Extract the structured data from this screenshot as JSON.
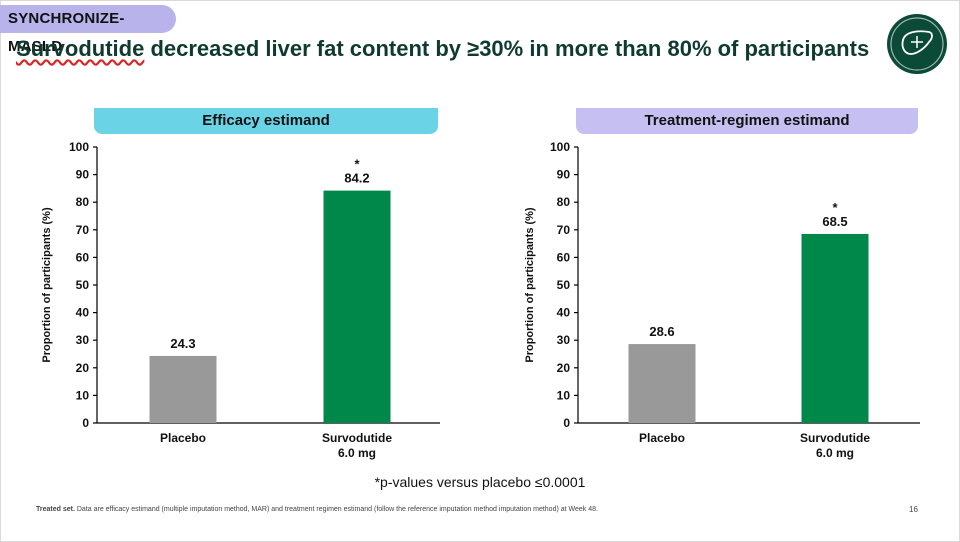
{
  "header": {
    "tag": "SYNCHRONIZE-MASLD",
    "title_highlight": "Survodutide",
    "title_rest": " decreased liver fat content by ≥30% in more than 80% of participants",
    "logo_icon": "liver-icon"
  },
  "colors": {
    "placebo": "#999999",
    "survodutide": "#00874a",
    "efficacy_pill": "#6ad3e6",
    "treatment_pill": "#c6c0f2",
    "title": "#0e3b2e"
  },
  "chart_data": [
    {
      "type": "bar",
      "title": "Efficacy estimand",
      "ylabel": "Proportion of participants (%)",
      "ylim": [
        0,
        100
      ],
      "yticks": [
        0,
        10,
        20,
        30,
        40,
        50,
        60,
        70,
        80,
        90,
        100
      ],
      "categories": [
        "Placebo",
        "Survodutide\n6.0 mg"
      ],
      "values": [
        24.3,
        84.2
      ],
      "value_labels": [
        "24.3",
        "84.2"
      ],
      "significance": [
        "",
        "*"
      ],
      "grid": false
    },
    {
      "type": "bar",
      "title": "Treatment-regimen estimand",
      "ylabel": "Proportion of participants (%)",
      "ylim": [
        0,
        100
      ],
      "yticks": [
        0,
        10,
        20,
        30,
        40,
        50,
        60,
        70,
        80,
        90,
        100
      ],
      "categories": [
        "Placebo",
        "Survodutide\n6.0 mg"
      ],
      "values": [
        28.6,
        68.5
      ],
      "value_labels": [
        "28.6",
        "68.5"
      ],
      "significance": [
        "",
        "*"
      ],
      "grid": false
    }
  ],
  "footnote_p": "*p-values versus placebo ≤0.0001",
  "footer": {
    "bold": "Treated set.",
    "text": " Data are efficacy estimand (multiple imputation method, MAR) and treatment regimen estimand (follow the reference imputation method imputation method) at Week 48.",
    "page_number": "16"
  }
}
